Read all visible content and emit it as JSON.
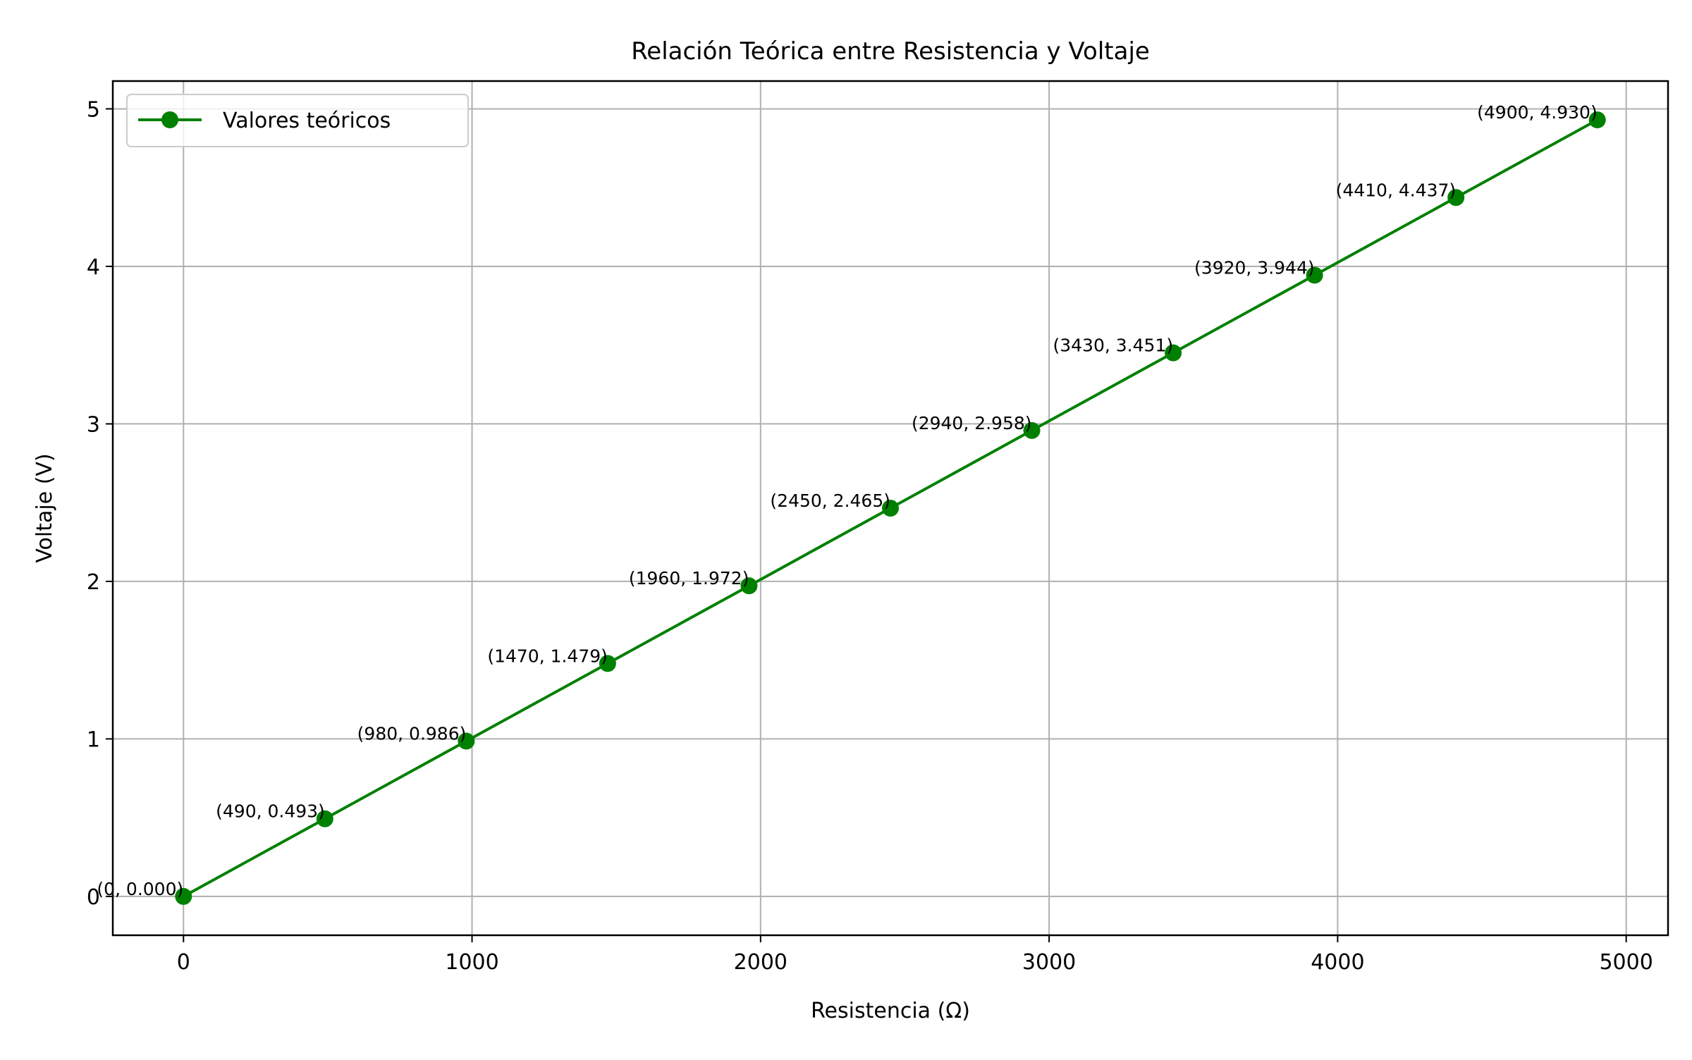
{
  "chart_data": {
    "type": "line",
    "title": "Relación Teórica entre Resistencia y Voltaje",
    "xlabel": "Resistencia (Ω)",
    "ylabel": "Voltaje (V)",
    "xlim": [
      -245,
      5145
    ],
    "ylim": [
      -0.2465,
      5.1765
    ],
    "xticks": [
      0,
      1000,
      2000,
      3000,
      4000,
      5000
    ],
    "yticks": [
      0,
      1,
      2,
      3,
      4,
      5
    ],
    "grid": true,
    "legend_position": "upper-left",
    "series": [
      {
        "name": "Valores teóricos",
        "color": "#008000",
        "marker": "circle",
        "x": [
          0,
          490,
          980,
          1470,
          1960,
          2450,
          2940,
          3430,
          3920,
          4410,
          4900
        ],
        "y": [
          0.0,
          0.493,
          0.986,
          1.479,
          1.972,
          2.465,
          2.958,
          3.451,
          3.944,
          4.437,
          4.93
        ]
      }
    ],
    "annotations": [
      "(0, 0.000)",
      "(490, 0.493)",
      "(980, 0.986)",
      "(1470, 1.479)",
      "(1960, 1.972)",
      "(2450, 2.465)",
      "(2940, 2.958)",
      "(3430, 3.451)",
      "(3920, 3.944)",
      "(4410, 4.437)",
      "(4900, 4.930)"
    ]
  }
}
